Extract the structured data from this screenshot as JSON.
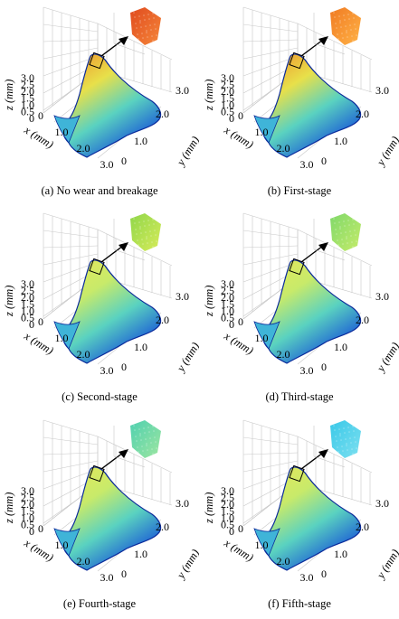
{
  "axis_labels": {
    "z": "z (mm)",
    "x": "x (mm)",
    "y": "y (mm)"
  },
  "ticks": {
    "z": [
      "3.0",
      "2.5",
      "2.0",
      "1.5",
      "1.0",
      "0.5",
      "0"
    ],
    "x": [
      "0",
      "1.0",
      "2.0",
      "3.0"
    ],
    "y": [
      "0",
      "1.0",
      "2.0",
      "3.0"
    ]
  },
  "panels": [
    {
      "caption": "(a) No wear and breakage",
      "inset_colors": [
        "#e04a1e",
        "#f5873a"
      ]
    },
    {
      "caption": "(b) First-stage",
      "inset_colors": [
        "#f07a22",
        "#ffb347"
      ]
    },
    {
      "caption": "(c) Second-stage",
      "inset_colors": [
        "#8fd64a",
        "#d8ec5a"
      ]
    },
    {
      "caption": "(d) Third-stage",
      "inset_colors": [
        "#7fd86a",
        "#c6ec6a"
      ]
    },
    {
      "caption": "(e) Fourth-stage",
      "inset_colors": [
        "#4fd0b0",
        "#9ee6a0"
      ]
    },
    {
      "caption": "(f) Fifth-stage",
      "inset_colors": [
        "#38c8e8",
        "#7ee0f0"
      ]
    }
  ],
  "colors": {
    "surface_tip_ab": "#f08a2a",
    "surface_tip_cdef": "#e8e85a",
    "surface_mid": "#5ad2c0",
    "surface_base": "#1450d8",
    "edge": "#0a2a9a"
  }
}
